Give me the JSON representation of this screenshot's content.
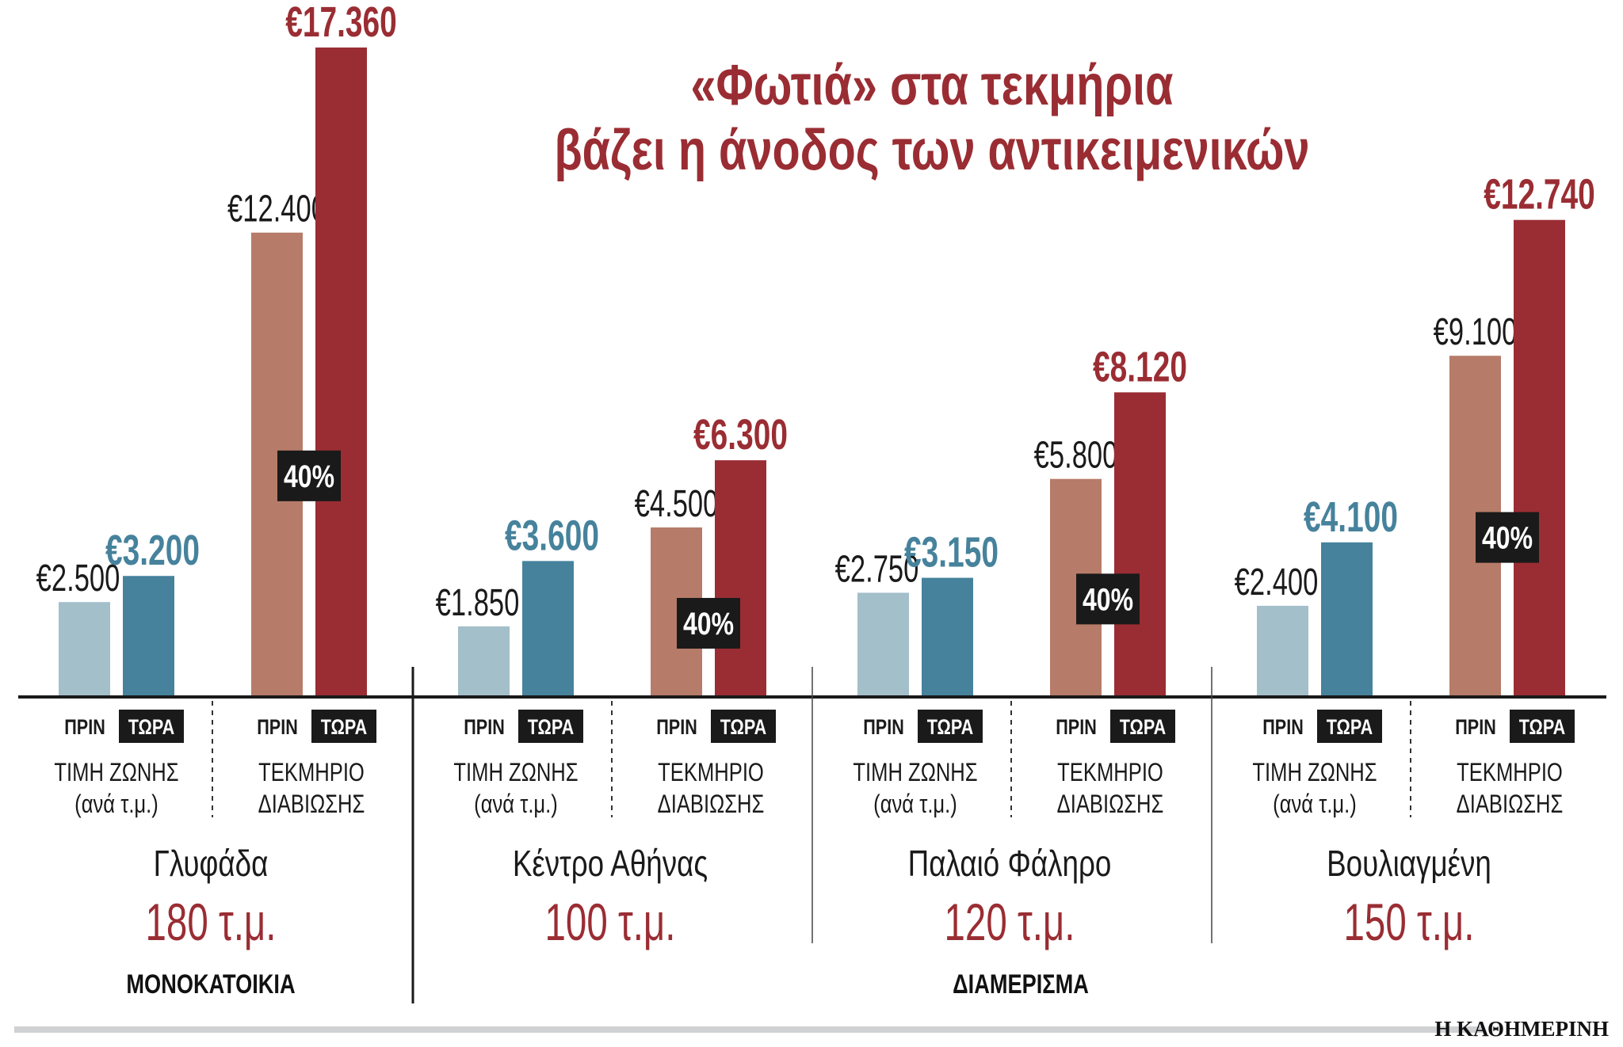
{
  "chart_data": {
    "type": "bar",
    "title": [
      "«Φωτιά» στα τεκμήρια",
      "βάζει η άνοδος των αντικειμενικών"
    ],
    "ylim": [
      0,
      17360
    ],
    "grid": false,
    "colors": {
      "zone_before": "#a3bfca",
      "zone_now": "#46829c",
      "tek_before": "#b67c69",
      "tek_now": "#9a2d33",
      "label_box": "#1a1a1a"
    },
    "bar_labels": {
      "before": "ΠΡΙΝ",
      "now": "ΤΩΡΑ"
    },
    "categories": {
      "zone": [
        "ΤΙΜΗ ΖΩΝΗΣ",
        "(ανά τ.μ.)"
      ],
      "tek": [
        "ΤΕΚΜΗΡΙΟ",
        "ΔΙΑΒΙΩΣΗΣ"
      ]
    },
    "groups": [
      {
        "region": "Γλυφάδα",
        "area": "180 τ.μ.",
        "zone_before": 2500,
        "zone_now": 3200,
        "tek_before": 12400,
        "tek_now": 17360,
        "labels": {
          "zone_before": "€2.500",
          "zone_now": "€3.200",
          "tek_before": "€12.400",
          "tek_now": "€17.360"
        },
        "increase": "40%"
      },
      {
        "region": "Κέντρο Αθήνας",
        "area": "100 τ.μ.",
        "zone_before": 1850,
        "zone_now": 3600,
        "tek_before": 4500,
        "tek_now": 6300,
        "labels": {
          "zone_before": "€1.850",
          "zone_now": "€3.600",
          "tek_before": "€4.500",
          "tek_now": "€6.300"
        },
        "increase": "40%"
      },
      {
        "region": "Παλαιό Φάληρο",
        "area": "120 τ.μ.",
        "zone_before": 2750,
        "zone_now": 3150,
        "tek_before": 5800,
        "tek_now": 8120,
        "labels": {
          "zone_before": "€2.750",
          "zone_now": "€3.150",
          "tek_before": "€5.800",
          "tek_now": "€8.120"
        },
        "increase": "40%"
      },
      {
        "region": "Βουλιαγμένη",
        "area": "150 τ.μ.",
        "zone_before": 2400,
        "zone_now": 4100,
        "tek_before": 9100,
        "tek_now": 12740,
        "labels": {
          "zone_before": "€2.400",
          "zone_now": "€4.100",
          "tek_before": "€9.100",
          "tek_now": "€12.740"
        },
        "increase": "40%"
      }
    ],
    "property_types": [
      "ΜΟΝΟΚΑΤΟΙΚΙΑ",
      "ΔΙΑΜΕΡΙΣΜΑ"
    ],
    "source": "Η ΚΑΘΗΜΕΡΙΝΗ"
  }
}
